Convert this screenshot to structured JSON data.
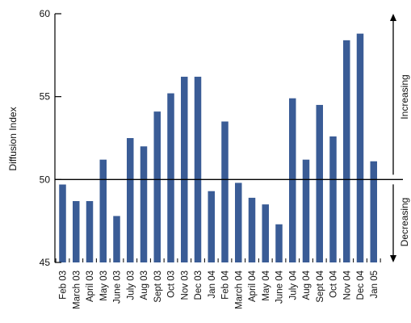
{
  "chart_data": {
    "type": "bar",
    "ylabel": "Diffusion Index",
    "ylim": [
      45,
      60
    ],
    "yticks": [
      45,
      50,
      55,
      60
    ],
    "reference_line": 50,
    "categories": [
      "Feb 03",
      "March 03",
      "April 03",
      "May 03",
      "June 03",
      "July 03",
      "Aug 03",
      "Sept 03",
      "Oct 03",
      "Nov 03",
      "Dec 03",
      "Jan 04",
      "Feb 04",
      "March 04",
      "April 04",
      "May 04",
      "June 04",
      "July 04",
      "Aug 04",
      "Sept 04",
      "Oct 04",
      "Nov 04",
      "Dec 04",
      "Jan 05"
    ],
    "values": [
      49.7,
      48.7,
      48.7,
      51.2,
      47.8,
      52.5,
      52.0,
      54.1,
      55.2,
      56.2,
      56.2,
      49.3,
      53.5,
      49.8,
      48.9,
      48.5,
      47.3,
      54.9,
      51.2,
      54.5,
      52.6,
      58.4,
      58.8,
      51.1
    ],
    "bar_color": "#3a5c96",
    "annotations": {
      "above": "Increasing",
      "below": "Decreasing"
    }
  }
}
